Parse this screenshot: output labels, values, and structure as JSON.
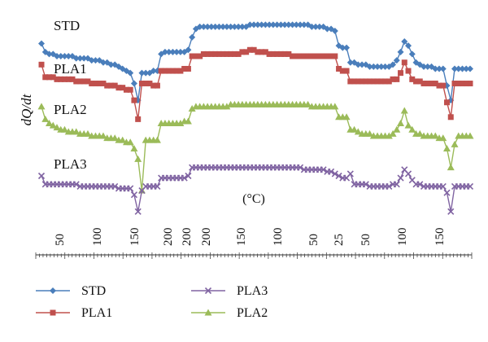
{
  "chart_data": {
    "type": "line",
    "ylabel": "dQ/dt",
    "unit_label": "(°C)",
    "x_tick_labels": [
      "50",
      "100",
      "150",
      "200",
      "200",
      "200",
      "150",
      "100",
      "50",
      "25",
      "50",
      "100",
      "150"
    ],
    "grid": false,
    "legend_position": "bottom",
    "legend": [
      "STD",
      "PLA1",
      "PLA3",
      "PLA2"
    ],
    "series": [
      {
        "name": "STD",
        "label": "STD",
        "color": "#4a7ebb",
        "marker": "diamond",
        "values": [
          0.72,
          0.68,
          0.67,
          0.67,
          0.66,
          0.66,
          0.66,
          0.66,
          0.66,
          0.65,
          0.65,
          0.65,
          0.65,
          0.64,
          0.64,
          0.64,
          0.63,
          0.63,
          0.62,
          0.62,
          0.61,
          0.6,
          0.59,
          0.58,
          0.53,
          0.45,
          0.58,
          0.58,
          0.58,
          0.59,
          0.59,
          0.67,
          0.68,
          0.68,
          0.68,
          0.68,
          0.68,
          0.68,
          0.69,
          0.75,
          0.79,
          0.8,
          0.8,
          0.8,
          0.8,
          0.8,
          0.8,
          0.8,
          0.8,
          0.8,
          0.8,
          0.8,
          0.8,
          0.8,
          0.81,
          0.81,
          0.81,
          0.81,
          0.81,
          0.81,
          0.81,
          0.81,
          0.81,
          0.81,
          0.81,
          0.81,
          0.81,
          0.81,
          0.81,
          0.81,
          0.8,
          0.8,
          0.8,
          0.8,
          0.79,
          0.79,
          0.78,
          0.71,
          0.7,
          0.7,
          0.63,
          0.63,
          0.62,
          0.62,
          0.62,
          0.61,
          0.61,
          0.61,
          0.61,
          0.61,
          0.61,
          0.62,
          0.64,
          0.68,
          0.73,
          0.71,
          0.67,
          0.63,
          0.62,
          0.61,
          0.61,
          0.61,
          0.6,
          0.6,
          0.6,
          0.52,
          0.45,
          0.6,
          0.6,
          0.6,
          0.6,
          0.6
        ]
      },
      {
        "name": "PLA1",
        "label": "PLA1",
        "color": "#c0504d",
        "marker": "square",
        "values": [
          0.62,
          0.56,
          0.56,
          0.56,
          0.55,
          0.55,
          0.55,
          0.55,
          0.55,
          0.54,
          0.54,
          0.54,
          0.54,
          0.53,
          0.53,
          0.53,
          0.53,
          0.52,
          0.52,
          0.52,
          0.51,
          0.51,
          0.5,
          0.5,
          0.45,
          0.36,
          0.53,
          0.53,
          0.53,
          0.52,
          0.52,
          0.59,
          0.59,
          0.59,
          0.59,
          0.59,
          0.59,
          0.6,
          0.6,
          0.66,
          0.66,
          0.66,
          0.67,
          0.67,
          0.67,
          0.67,
          0.67,
          0.67,
          0.67,
          0.67,
          0.67,
          0.67,
          0.68,
          0.68,
          0.69,
          0.69,
          0.68,
          0.68,
          0.68,
          0.67,
          0.67,
          0.67,
          0.67,
          0.67,
          0.67,
          0.66,
          0.66,
          0.66,
          0.66,
          0.66,
          0.66,
          0.66,
          0.66,
          0.66,
          0.66,
          0.66,
          0.66,
          0.6,
          0.59,
          0.59,
          0.54,
          0.54,
          0.54,
          0.54,
          0.54,
          0.54,
          0.54,
          0.54,
          0.54,
          0.54,
          0.54,
          0.55,
          0.55,
          0.58,
          0.63,
          0.59,
          0.55,
          0.54,
          0.54,
          0.53,
          0.53,
          0.53,
          0.53,
          0.52,
          0.52,
          0.44,
          0.37,
          0.53,
          0.53,
          0.53,
          0.53,
          0.53
        ]
      },
      {
        "name": "PLA2",
        "label": "PLA2",
        "color": "#9bbb59",
        "marker": "triangle",
        "values": [
          0.42,
          0.36,
          0.34,
          0.33,
          0.32,
          0.31,
          0.31,
          0.3,
          0.3,
          0.3,
          0.29,
          0.29,
          0.29,
          0.28,
          0.28,
          0.28,
          0.28,
          0.27,
          0.27,
          0.27,
          0.26,
          0.26,
          0.25,
          0.25,
          0.22,
          0.17,
          0.02,
          0.26,
          0.26,
          0.26,
          0.26,
          0.34,
          0.34,
          0.34,
          0.34,
          0.34,
          0.34,
          0.35,
          0.35,
          0.41,
          0.42,
          0.42,
          0.42,
          0.42,
          0.42,
          0.42,
          0.42,
          0.42,
          0.42,
          0.43,
          0.43,
          0.43,
          0.43,
          0.43,
          0.43,
          0.43,
          0.43,
          0.43,
          0.43,
          0.43,
          0.43,
          0.43,
          0.43,
          0.43,
          0.43,
          0.43,
          0.43,
          0.43,
          0.43,
          0.43,
          0.42,
          0.42,
          0.42,
          0.42,
          0.42,
          0.42,
          0.42,
          0.37,
          0.37,
          0.37,
          0.31,
          0.31,
          0.3,
          0.29,
          0.29,
          0.29,
          0.28,
          0.28,
          0.28,
          0.28,
          0.28,
          0.29,
          0.31,
          0.34,
          0.4,
          0.33,
          0.31,
          0.29,
          0.29,
          0.28,
          0.28,
          0.28,
          0.28,
          0.27,
          0.27,
          0.22,
          0.13,
          0.24,
          0.28,
          0.28,
          0.28,
          0.28
        ]
      },
      {
        "name": "PLA3",
        "label": "PLA3",
        "color": "#8064a2",
        "marker": "x",
        "values": [
          0.09,
          0.05,
          0.05,
          0.05,
          0.05,
          0.05,
          0.05,
          0.05,
          0.05,
          0.05,
          0.04,
          0.04,
          0.04,
          0.04,
          0.04,
          0.04,
          0.04,
          0.04,
          0.04,
          0.04,
          0.03,
          0.03,
          0.03,
          0.03,
          0.0,
          -0.08,
          0.02,
          0.04,
          0.04,
          0.04,
          0.04,
          0.08,
          0.08,
          0.08,
          0.08,
          0.08,
          0.08,
          0.08,
          0.09,
          0.13,
          0.13,
          0.13,
          0.13,
          0.13,
          0.13,
          0.13,
          0.13,
          0.13,
          0.13,
          0.13,
          0.13,
          0.13,
          0.13,
          0.13,
          0.13,
          0.13,
          0.13,
          0.13,
          0.13,
          0.13,
          0.13,
          0.13,
          0.13,
          0.13,
          0.13,
          0.13,
          0.13,
          0.13,
          0.12,
          0.12,
          0.12,
          0.12,
          0.12,
          0.12,
          0.11,
          0.11,
          0.1,
          0.09,
          0.08,
          0.08,
          0.1,
          0.05,
          0.05,
          0.05,
          0.05,
          0.04,
          0.04,
          0.04,
          0.04,
          0.04,
          0.04,
          0.05,
          0.05,
          0.08,
          0.12,
          0.1,
          0.07,
          0.05,
          0.05,
          0.04,
          0.04,
          0.04,
          0.04,
          0.04,
          0.04,
          0.01,
          -0.08,
          0.04,
          0.04,
          0.04,
          0.04,
          0.04
        ]
      }
    ]
  }
}
